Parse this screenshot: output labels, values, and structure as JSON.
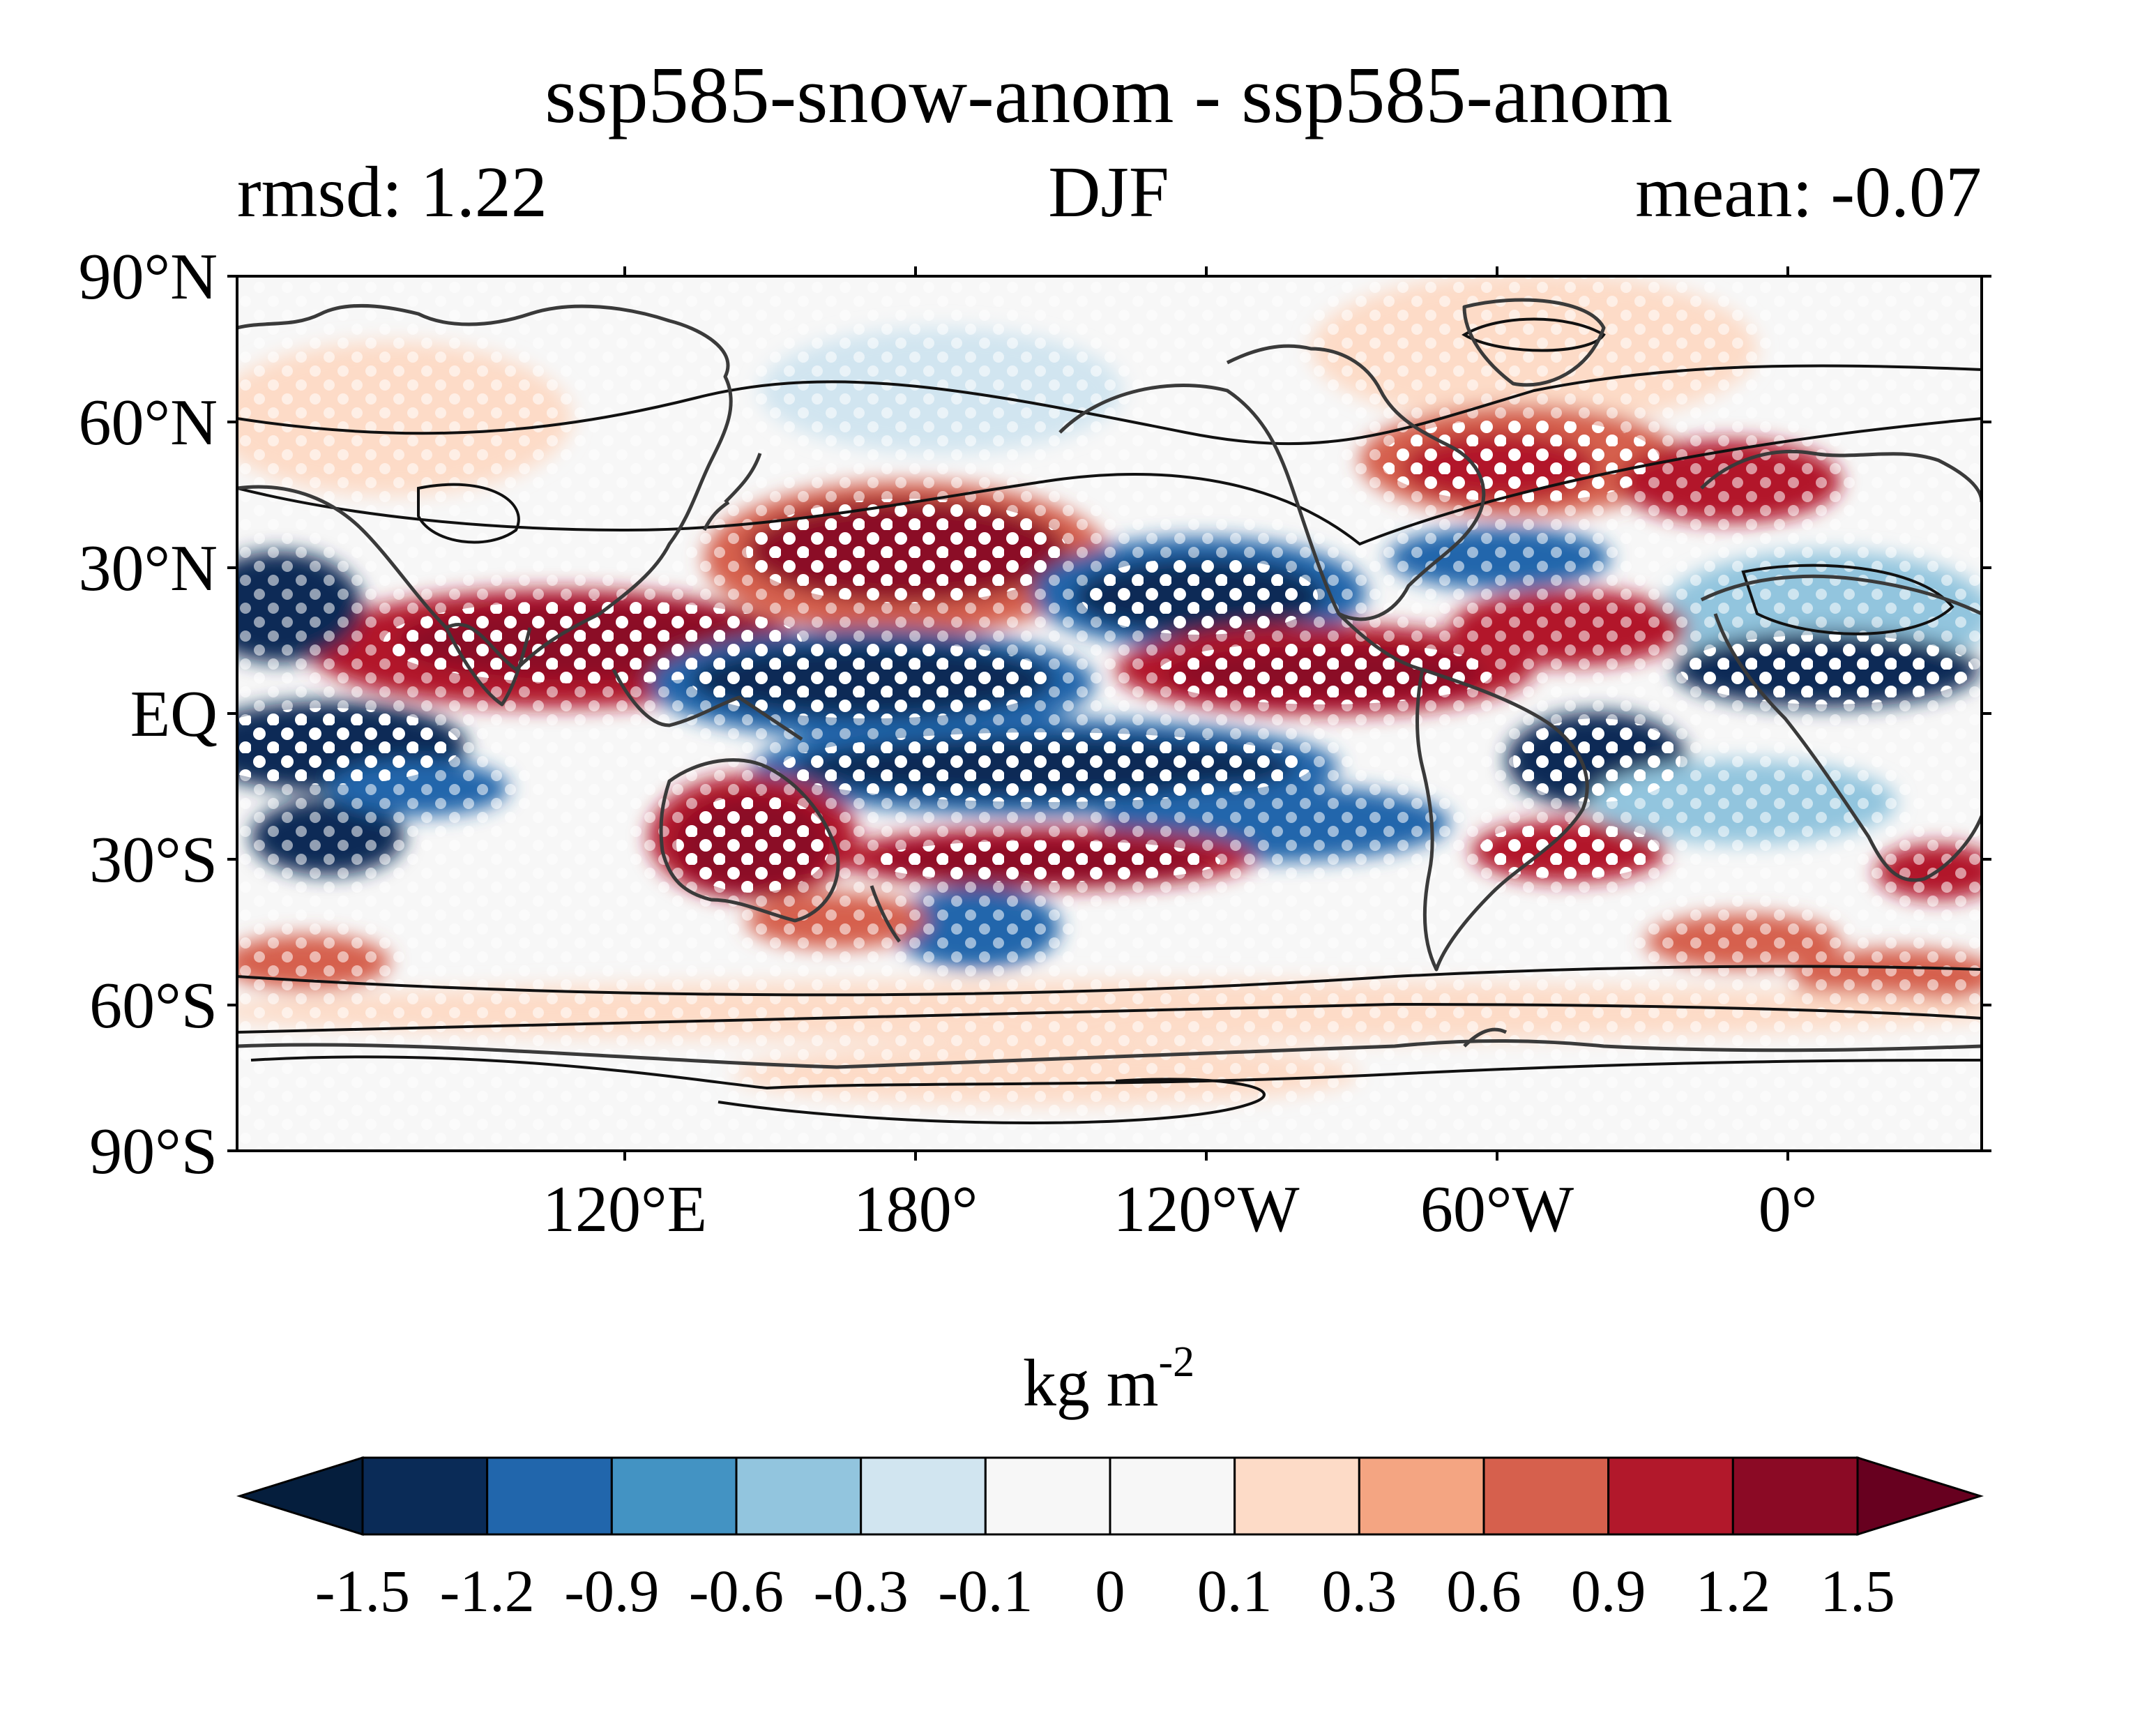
{
  "title": "ssp585-snow-anom - ssp585-anom",
  "subtitle": {
    "left": "rmsd: 1.22",
    "center": "DJF",
    "right": "mean: -0.07"
  },
  "axes": {
    "lat_ticks": [
      {
        "value": 90,
        "label": "90°N"
      },
      {
        "value": 60,
        "label": "60°N"
      },
      {
        "value": 30,
        "label": "30°N"
      },
      {
        "value": 0,
        "label": "EQ"
      },
      {
        "value": -30,
        "label": "30°S"
      },
      {
        "value": -60,
        "label": "60°S"
      },
      {
        "value": -90,
        "label": "90°S"
      }
    ],
    "lon_ticks": [
      {
        "value": 120,
        "label": "120°E"
      },
      {
        "value": 180,
        "label": "180°"
      },
      {
        "value": 240,
        "label": "120°W"
      },
      {
        "value": 300,
        "label": "60°W"
      },
      {
        "value": 360,
        "label": "0°"
      }
    ],
    "lon_range": [
      40,
      400
    ],
    "lat_range": [
      -90,
      90
    ]
  },
  "colorbar": {
    "label_main": "kg m",
    "label_sup": "-2",
    "ticks": [
      "-1.5",
      "-1.2",
      "-0.9",
      "-0.6",
      "-0.3",
      "-0.1",
      "0",
      "0.1",
      "0.3",
      "0.6",
      "0.9",
      "1.2",
      "1.5"
    ],
    "colors": [
      "#0a2b57",
      "#2166ac",
      "#4393c3",
      "#92c5de",
      "#d1e5f0",
      "#f7f7f7",
      "#f7f7f7",
      "#fddbc7",
      "#f4a582",
      "#d6604d",
      "#b2182b",
      "#8b0a25"
    ],
    "extend_low": "#051e3d",
    "extend_high": "#67001f"
  },
  "field": {
    "neutral": "#f7f7f7",
    "coast_color": "#3a3a3a",
    "contour_color": "#111111",
    "stipple_color": "#ffffff"
  }
}
